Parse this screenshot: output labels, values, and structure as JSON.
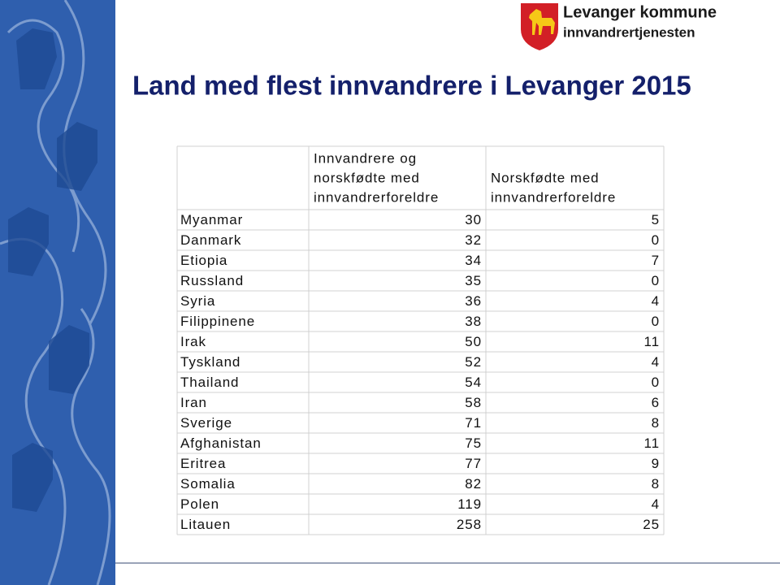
{
  "header": {
    "org": "Levanger kommune",
    "unit": "innvandrertjenesten"
  },
  "title": "Land med flest innvandrere i Levanger 2015",
  "table": {
    "columns": [
      [
        "Innvandrere og",
        "norskfødte med",
        "innvandrerforeldre"
      ],
      [
        "Norskfødte med",
        "innvandrerforeldre"
      ]
    ],
    "rows": [
      [
        "Myanmar",
        30,
        5
      ],
      [
        "Danmark",
        32,
        0
      ],
      [
        "Etiopia",
        34,
        7
      ],
      [
        "Russland",
        35,
        0
      ],
      [
        "Syria",
        36,
        4
      ],
      [
        "Filippinene",
        38,
        0
      ],
      [
        "Irak",
        50,
        11
      ],
      [
        "Tyskland",
        52,
        4
      ],
      [
        "Thailand",
        54,
        0
      ],
      [
        "Iran",
        58,
        6
      ],
      [
        "Sverige",
        71,
        8
      ],
      [
        "Afghanistan",
        75,
        11
      ],
      [
        "Eritrea",
        77,
        9
      ],
      [
        "Somalia",
        82,
        8
      ],
      [
        "Polen",
        119,
        4
      ],
      [
        "Litauen",
        258,
        25
      ]
    ]
  }
}
